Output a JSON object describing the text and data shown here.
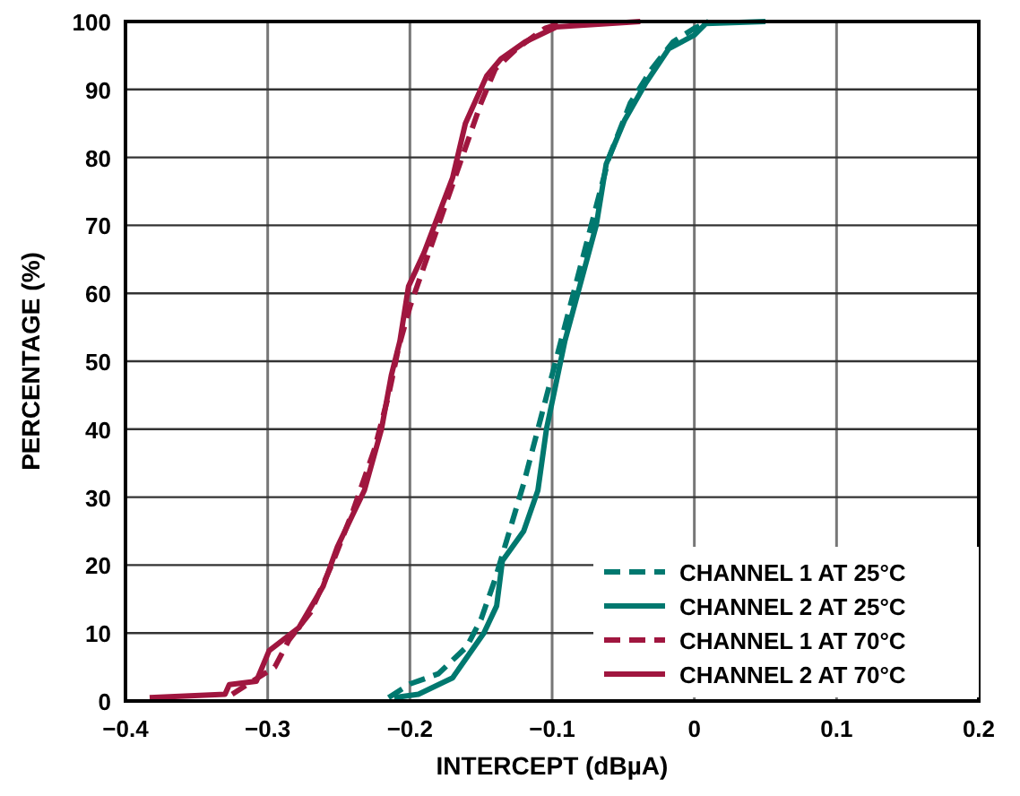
{
  "chart_data": {
    "type": "line",
    "xlabel": "INTERCEPT (dBµA)",
    "ylabel": "PERCENTAGE (%)",
    "xlim": [
      -0.4,
      0.2
    ],
    "ylim": [
      0,
      100
    ],
    "xticks": [
      -0.4,
      -0.3,
      -0.2,
      -0.1,
      0,
      0.1,
      0.2
    ],
    "yticks": [
      0,
      10,
      20,
      30,
      40,
      50,
      60,
      70,
      80,
      90,
      100
    ],
    "grid": true,
    "legend": "bottom right",
    "marker": "none",
    "series": [
      {
        "name": "CHANNEL 1 AT 25°C",
        "color": "#00786f",
        "line_style": "dashed",
        "x": [
          -0.215,
          -0.2,
          -0.18,
          -0.16,
          -0.15,
          -0.14,
          -0.13,
          -0.12,
          -0.11,
          -0.1,
          -0.09,
          -0.08,
          -0.07,
          -0.06,
          -0.045,
          -0.03,
          -0.015,
          0,
          0.01
        ],
        "values": [
          0.5,
          2.5,
          4,
          8,
          12,
          18,
          25,
          32,
          40,
          48,
          56,
          64,
          72,
          80,
          88,
          93,
          97,
          99,
          100
        ]
      },
      {
        "name": "CHANNEL 2 AT 25°C",
        "color": "#00786f",
        "line_style": "solid",
        "x": [
          -0.211,
          -0.194,
          -0.17,
          -0.148,
          -0.139,
          -0.135,
          -0.12,
          -0.11,
          -0.104,
          -0.091,
          -0.069,
          -0.062,
          -0.049,
          -0.034,
          -0.018,
          0,
          0.008,
          0.05
        ],
        "values": [
          0.5,
          1,
          3.4,
          10,
          14,
          20.6,
          25,
          31,
          40,
          53,
          70,
          79,
          85.5,
          91,
          96,
          98,
          99.7,
          100
        ]
      },
      {
        "name": "CHANNEL 1 AT 70°C",
        "color": "#a0163f",
        "line_style": "dashed",
        "x": [
          -0.325,
          -0.31,
          -0.295,
          -0.285,
          -0.27,
          -0.255,
          -0.24,
          -0.225,
          -0.215,
          -0.208,
          -0.2,
          -0.19,
          -0.18,
          -0.17,
          -0.16,
          -0.15,
          -0.14,
          -0.125,
          -0.105,
          -0.09
        ],
        "values": [
          1,
          3,
          5,
          9,
          13,
          20,
          28,
          37,
          45,
          52,
          58,
          64,
          70,
          76,
          82,
          88,
          93,
          96,
          99,
          100
        ]
      },
      {
        "name": "CHANNEL 2 AT 70°C",
        "color": "#a0163f",
        "line_style": "solid",
        "x": [
          -0.383,
          -0.33,
          -0.327,
          -0.308,
          -0.299,
          -0.278,
          -0.261,
          -0.251,
          -0.232,
          -0.22,
          -0.213,
          -0.207,
          -0.201,
          -0.19,
          -0.17,
          -0.161,
          -0.146,
          -0.136,
          -0.119,
          -0.097,
          -0.038
        ],
        "values": [
          0.5,
          1,
          2.4,
          2.9,
          7.4,
          10.8,
          16.9,
          22.7,
          31,
          40,
          48,
          53,
          61,
          66,
          77,
          85,
          92,
          94.5,
          97,
          99.2,
          100
        ]
      }
    ]
  }
}
